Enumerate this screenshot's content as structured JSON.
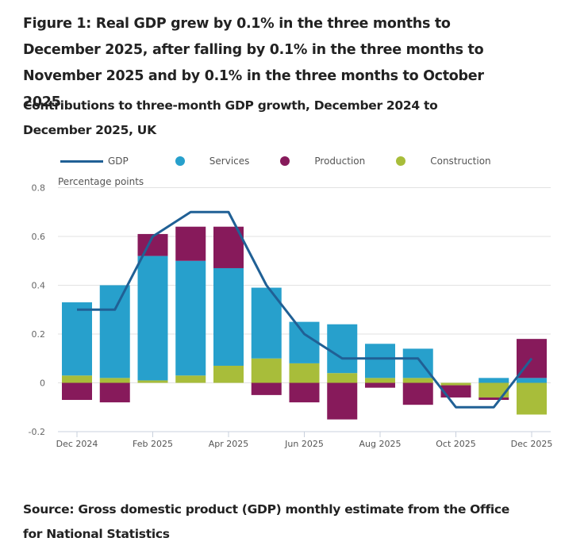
{
  "title": "Figure 1: Real GDP grew by 0.1% in the three months to December 2025, after falling by 0.1% in the three months to November 2025 and by 0.1% in the three months to October 2025",
  "source": "Source: Gross domestic product (GDP) monthly estimate from the Office for National Statistics",
  "colors": {
    "GDP": "#206095",
    "Services": "#27a0cc",
    "Production": "#871a5b",
    "Construction": "#a8bd3a"
  },
  "chart_data": {
    "type": "bar",
    "stacked": true,
    "title": "Contributions to three-month GDP growth, December 2024 to December 2025, UK",
    "xlabel": "",
    "ylabel": "Percentage points",
    "ylim": [
      -0.2,
      0.8
    ],
    "yticks": [
      -0.2,
      0,
      0.2,
      0.4,
      0.6,
      0.8
    ],
    "ytick_labels": [
      "-0.2",
      "0",
      "0.2",
      "0.4",
      "0.6",
      "0.8"
    ],
    "grid": true,
    "legend_position": "top-left",
    "categories": [
      "Dec 2024",
      "Jan 2025",
      "Feb 2025",
      "Mar 2025",
      "Apr 2025",
      "May 2025",
      "Jun 2025",
      "Jul 2025",
      "Aug 2025",
      "Sep 2025",
      "Oct 2025",
      "Nov 2025",
      "Dec 2025"
    ],
    "xtick_labels": [
      "Dec 2024",
      "",
      "Feb 2025",
      "",
      "Apr 2025",
      "",
      "Jun 2025",
      "",
      "Aug 2025",
      "",
      "Oct 2025",
      "",
      "Dec 2025"
    ],
    "series": [
      {
        "name": "Construction",
        "type": "bar",
        "values": [
          0.03,
          0.02,
          0.01,
          0.03,
          0.07,
          0.1,
          0.08,
          0.04,
          0.02,
          0.02,
          -0.01,
          -0.06,
          -0.13
        ]
      },
      {
        "name": "Services",
        "type": "bar",
        "values": [
          0.3,
          0.38,
          0.51,
          0.47,
          0.4,
          0.29,
          0.17,
          0.2,
          0.14,
          0.12,
          0.0,
          0.02,
          0.02
        ]
      },
      {
        "name": "Production",
        "type": "bar",
        "values": [
          -0.07,
          -0.08,
          0.09,
          0.14,
          0.17,
          -0.05,
          -0.08,
          -0.15,
          -0.02,
          -0.09,
          -0.05,
          -0.01,
          0.16
        ]
      },
      {
        "name": "GDP",
        "type": "line",
        "values": [
          0.3,
          0.3,
          0.6,
          0.7,
          0.7,
          0.4,
          0.2,
          0.1,
          0.1,
          0.1,
          -0.1,
          -0.1,
          0.1
        ]
      }
    ],
    "legend": [
      "GDP",
      "Services",
      "Production",
      "Construction"
    ]
  }
}
